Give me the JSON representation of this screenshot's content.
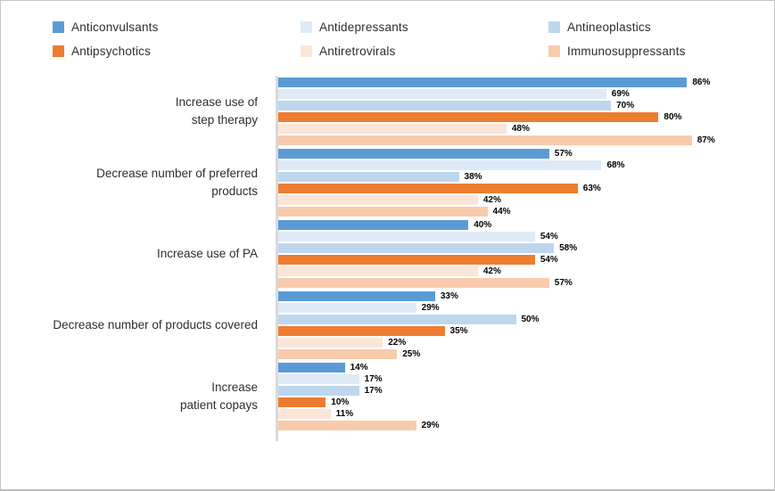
{
  "frame": {
    "background": "#ffffff",
    "border_color": "#c6c6c6"
  },
  "chart_data": {
    "type": "bar",
    "orientation": "horizontal",
    "title": "",
    "xlabel": "",
    "ylabel": "",
    "xlim": [
      0,
      100
    ],
    "grid": false,
    "legend_position": "top",
    "axis_line_color": "#d9d9d9",
    "value_suffix": "%",
    "data_label_style": "bold black, outside bar end",
    "categories": [
      "Increase use of\nstep therapy",
      "Decrease number of preferred\nproducts",
      "Increase use of PA",
      "Decrease number of products covered",
      "Increase\npatient copays"
    ],
    "series": [
      {
        "name": "Anticonvulsants",
        "color": "#5B9BD5",
        "values": [
          86,
          57,
          40,
          33,
          14
        ]
      },
      {
        "name": "Antidepressants",
        "color": "#DEEBF7",
        "values": [
          69,
          68,
          54,
          29,
          17
        ]
      },
      {
        "name": "Antineoplastics",
        "color": "#BDD7EE",
        "values": [
          70,
          38,
          58,
          50,
          17
        ]
      },
      {
        "name": "Antipsychotics",
        "color": "#ED7D31",
        "values": [
          80,
          63,
          54,
          35,
          10
        ]
      },
      {
        "name": "Antiretrovirals",
        "color": "#FBE5D6",
        "values": [
          48,
          42,
          42,
          22,
          11
        ]
      },
      {
        "name": "Immunosuppressants",
        "color": "#F8CBAD",
        "values": [
          87,
          44,
          57,
          25,
          29
        ]
      }
    ]
  }
}
